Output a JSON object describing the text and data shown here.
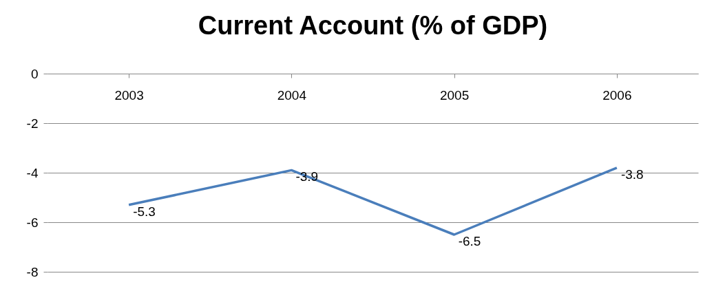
{
  "chart_data": {
    "type": "line",
    "title": "Current Account (% of GDP)",
    "categories": [
      "2003",
      "2004",
      "2005",
      "2006"
    ],
    "series": [
      {
        "color": "#4a7ebb",
        "values": [
          -5.3,
          -3.9,
          -6.5,
          -3.8
        ]
      }
    ],
    "ylim": [
      -8,
      0
    ],
    "yticks": [
      0,
      -2,
      -4,
      -6,
      -8
    ],
    "grid": "y",
    "legend": false,
    "data_labels": true,
    "marker": "none"
  }
}
